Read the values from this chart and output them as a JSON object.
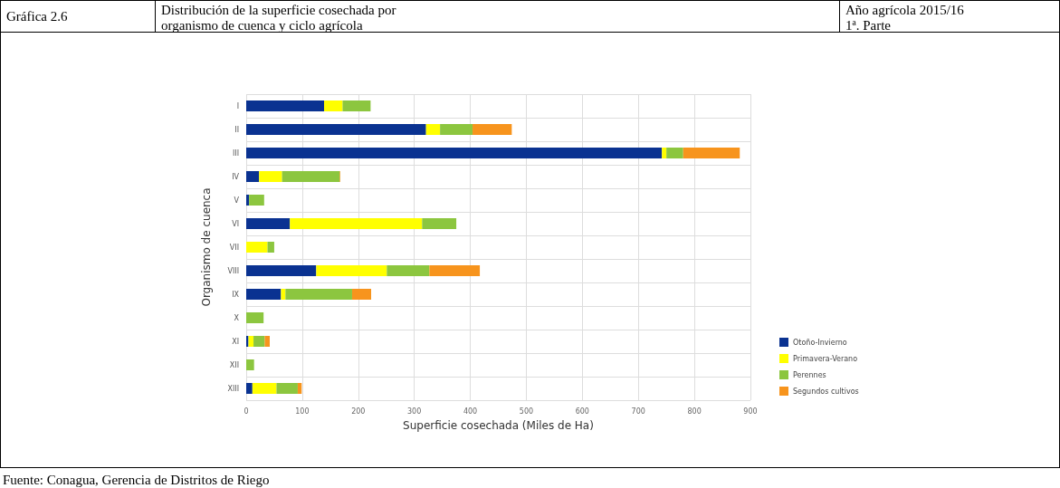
{
  "chart_data": {
    "type": "bar",
    "orientation": "horizontal",
    "stacked": true,
    "title": "Distribución de la superficie cosechada por organismo de cuenca y ciclo agrícola",
    "annotations": [
      "Gráfica 2.6",
      "Año agrícola 2015/16",
      "1ª. Parte",
      "Fuente: Conagua, Gerencia de Distritos de Riego"
    ],
    "xlabel": "Superficie cosechada (Miles de Ha)",
    "ylabel": "Organismo de cuenca",
    "categories": [
      "I",
      "II",
      "III",
      "IV",
      "V",
      "VI",
      "VII",
      "VIII",
      "IX",
      "X",
      "XI",
      "XII",
      "XIII"
    ],
    "series": [
      {
        "name": "Otoño-Invierno",
        "color": "#0a3291",
        "values": [
          139,
          321,
          742,
          23,
          5,
          78,
          0,
          125,
          62,
          0,
          4,
          0,
          11
        ]
      },
      {
        "name": "Primavera-Verano",
        "color": "#ffff00",
        "values": [
          33,
          25,
          8,
          41,
          0,
          236,
          38,
          126,
          8,
          0,
          9,
          0,
          43
        ]
      },
      {
        "name": "Perennes",
        "color": "#8cc63f",
        "values": [
          50,
          58,
          30,
          103,
          27,
          61,
          12,
          76,
          119,
          31,
          20,
          14,
          38
        ]
      },
      {
        "name": "Segundos cultivos",
        "color": "#f7941d",
        "values": [
          0,
          70,
          101,
          1,
          0,
          0,
          0,
          90,
          34,
          0,
          9,
          0,
          7
        ]
      }
    ],
    "xlim": [
      0,
      900
    ],
    "xticks": [
      0,
      100,
      200,
      300,
      400,
      500,
      600,
      700,
      800,
      900
    ],
    "grid": true,
    "legend": "right"
  }
}
